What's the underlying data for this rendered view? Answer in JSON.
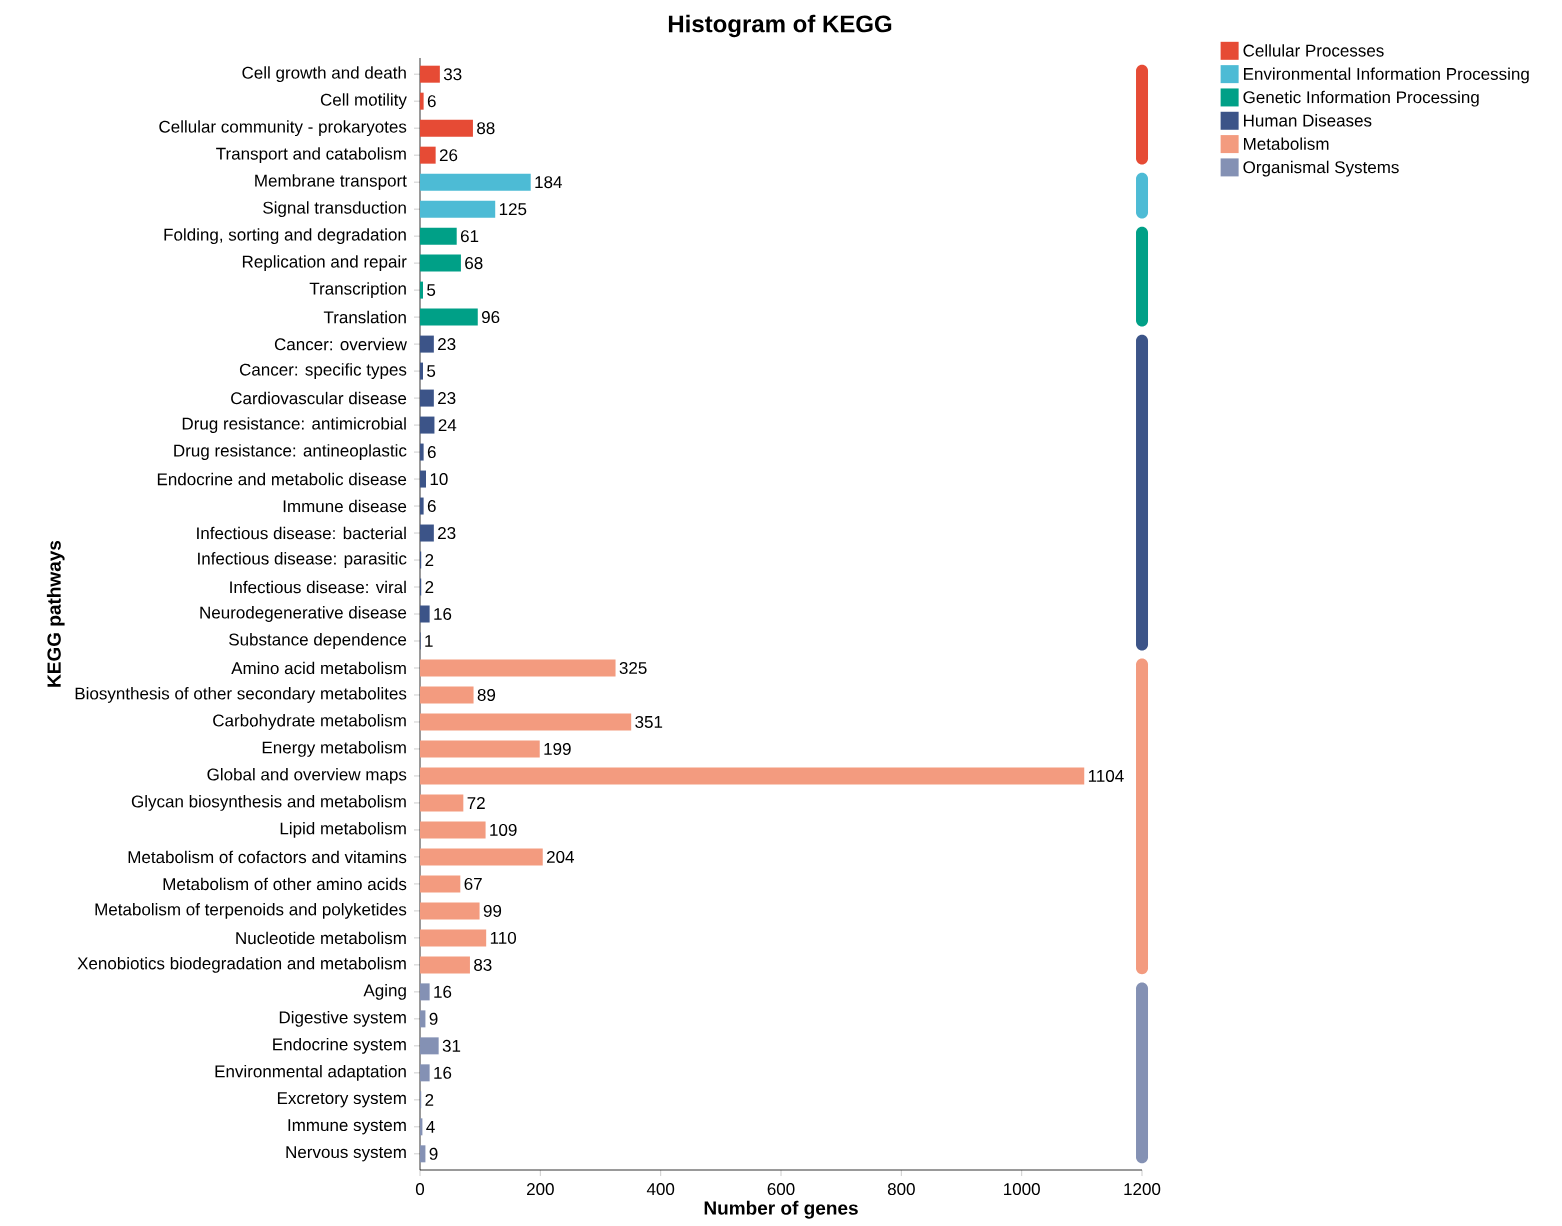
{
  "chart_data": {
    "type": "bar",
    "orientation": "horizontal",
    "title": "Histogram of KEGG",
    "xlabel": "Number of genes",
    "ylabel": "KEGG pathways",
    "categories": [
      "Cell growth and death",
      "Cell motility",
      "Cellular community - prokaryotes",
      "Transport and catabolism",
      "Membrane transport",
      "Signal transduction",
      "Folding, sorting and degradation",
      "Replication and repair",
      "Transcription",
      "Translation",
      "Cancer: overview",
      "Cancer: specific types",
      "Cardiovascular disease",
      "Drug resistance: antimicrobial",
      "Drug resistance: antineoplastic",
      "Endocrine and metabolic disease",
      "Immune disease",
      "Infectious disease: bacterial",
      "Infectious disease: parasitic",
      "Infectious disease: viral",
      "Neurodegenerative disease",
      "Substance dependence",
      "Amino acid metabolism",
      "Biosynthesis of other secondary metabolites",
      "Carbohydrate metabolism",
      "Energy metabolism",
      "Global and overview maps",
      "Glycan biosynthesis and metabolism",
      "Lipid metabolism",
      "Metabolism of cofactors and vitamins",
      "Metabolism of other amino acids",
      "Metabolism of terpenoids and polyketides",
      "Nucleotide metabolism",
      "Xenobiotics biodegradation and metabolism",
      "Aging",
      "Digestive system",
      "Endocrine system",
      "Environmental adaptation",
      "Excretory system",
      "Immune system",
      "Nervous system"
    ],
    "series": [
      {
        "name": "Cellular Processes",
        "color": "#e64b35",
        "values": [
          33,
          6,
          88,
          26,
          null,
          null,
          null,
          null,
          null,
          null,
          null,
          null,
          null,
          null,
          null,
          null,
          null,
          null,
          null,
          null,
          null,
          null,
          null,
          null,
          null,
          null,
          null,
          null,
          null,
          null,
          null,
          null,
          null,
          null,
          null,
          null,
          null,
          null,
          null,
          null,
          null
        ]
      },
      {
        "name": "Environmental Information Processing",
        "color": "#4dbbd5",
        "values": [
          null,
          null,
          null,
          null,
          184,
          125,
          null,
          null,
          null,
          null,
          null,
          null,
          null,
          null,
          null,
          null,
          null,
          null,
          null,
          null,
          null,
          null,
          null,
          null,
          null,
          null,
          null,
          null,
          null,
          null,
          null,
          null,
          null,
          null,
          null,
          null,
          null,
          null,
          null,
          null,
          null
        ]
      },
      {
        "name": "Genetic Information Processing",
        "color": "#00a087",
        "values": [
          null,
          null,
          null,
          null,
          null,
          null,
          61,
          68,
          5,
          96,
          null,
          null,
          null,
          null,
          null,
          null,
          null,
          null,
          null,
          null,
          null,
          null,
          null,
          null,
          null,
          null,
          null,
          null,
          null,
          null,
          null,
          null,
          null,
          null,
          null,
          null,
          null,
          null,
          null,
          null,
          null
        ]
      },
      {
        "name": "Human Diseases",
        "color": "#3c5488",
        "values": [
          null,
          null,
          null,
          null,
          null,
          null,
          null,
          null,
          null,
          null,
          23,
          5,
          23,
          24,
          6,
          10,
          6,
          23,
          2,
          2,
          16,
          1,
          null,
          null,
          null,
          null,
          null,
          null,
          null,
          null,
          null,
          null,
          null,
          null,
          null,
          null,
          null,
          null,
          null,
          null,
          null
        ]
      },
      {
        "name": "Metabolism",
        "color": "#f39b7f",
        "values": [
          null,
          null,
          null,
          null,
          null,
          null,
          null,
          null,
          null,
          null,
          null,
          null,
          null,
          null,
          null,
          null,
          null,
          null,
          null,
          null,
          null,
          null,
          325,
          89,
          351,
          199,
          1104,
          72,
          109,
          204,
          67,
          99,
          110,
          83,
          null,
          null,
          null,
          null,
          null,
          null,
          null
        ]
      },
      {
        "name": "Organismal Systems",
        "color": "#8491b4",
        "values": [
          null,
          null,
          null,
          null,
          null,
          null,
          null,
          null,
          null,
          null,
          null,
          null,
          null,
          null,
          null,
          null,
          null,
          null,
          null,
          null,
          null,
          null,
          null,
          null,
          null,
          null,
          null,
          null,
          null,
          null,
          null,
          null,
          null,
          null,
          16,
          9,
          31,
          16,
          2,
          4,
          9
        ]
      }
    ],
    "xlim": [
      0,
      1200
    ],
    "xticks": [
      0,
      200,
      400,
      600,
      800,
      1000,
      1200
    ],
    "data_labels": true,
    "legend": "top right",
    "grid": false
  }
}
